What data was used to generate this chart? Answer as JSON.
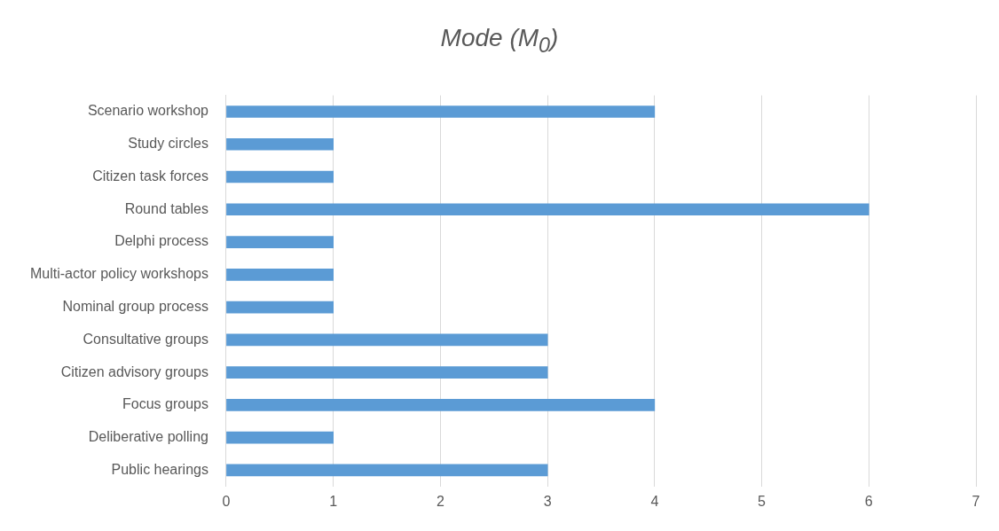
{
  "chart_data": {
    "type": "bar",
    "orientation": "horizontal",
    "title": "Mode (M$_{0}$)",
    "categories": [
      "Scenario workshop",
      "Study circles",
      "Citizen task forces",
      "Round tables",
      "Delphi process",
      "Multi-actor policy workshops",
      "Nominal group process",
      "Consultative groups",
      "Citizen advisory groups",
      "Focus groups",
      "Deliberative polling",
      "Public hearings"
    ],
    "values": [
      4,
      1,
      1,
      6,
      1,
      1,
      1,
      3,
      3,
      4,
      1,
      3
    ],
    "color": "#5b9bd5",
    "xlim": [
      0,
      7
    ],
    "xticks": [
      0,
      1,
      2,
      3,
      4,
      5,
      6,
      7
    ],
    "grid": "x",
    "legend": false
  }
}
